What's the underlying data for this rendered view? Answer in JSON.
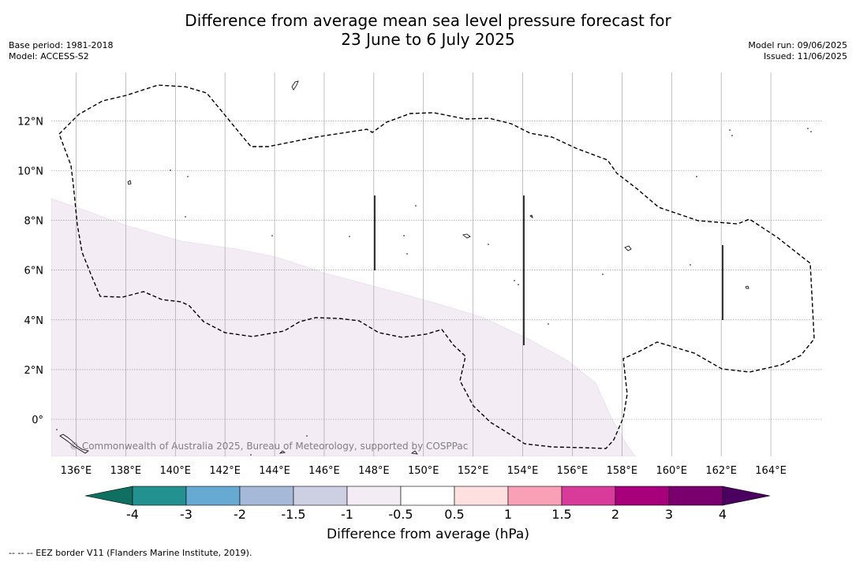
{
  "title": {
    "line1": "Difference from average mean sea level pressure forecast for",
    "line2": "23 June to 6 July 2025"
  },
  "meta_left": {
    "base_period": "Base period: 1981-2018",
    "model": "Model: ACCESS-S2"
  },
  "meta_right": {
    "model_run": "Model run: 09/06/2025",
    "issued": "Issued: 11/06/2025"
  },
  "map": {
    "lon_ticks": [
      "136°E",
      "138°E",
      "140°E",
      "142°E",
      "144°E",
      "146°E",
      "148°E",
      "150°E",
      "152°E",
      "154°E",
      "156°E",
      "158°E",
      "160°E",
      "162°E",
      "164°E"
    ],
    "lat_ticks": [
      "12°N",
      "10°N",
      "8°N",
      "6°N",
      "4°N",
      "2°N",
      "0°"
    ],
    "copyright": "© Commonwealth of Australia 2025, Bureau of Meteorology, supported by COSPPac",
    "shaded_category": "-1 to -0.5 hPa"
  },
  "colorbar": {
    "tick_labels": [
      "-4",
      "-3",
      "-2",
      "-1.5",
      "-1",
      "-0.5",
      "0.5",
      "1",
      "1.5",
      "2",
      "3",
      "4"
    ],
    "colors": [
      "#0f6f60",
      "#23918f",
      "#66a9d2",
      "#a7b9d9",
      "#cdd0e3",
      "#f3ecf4",
      "#ffffff",
      "#fde0df",
      "#f9a0b6",
      "#d93b9b",
      "#a8007d",
      "#7a006f",
      "#4b0060"
    ],
    "label": "Difference from average (hPa)"
  },
  "footnote": "--  --  -- EEZ border V11 (Flanders Marine Institute, 2019)."
}
